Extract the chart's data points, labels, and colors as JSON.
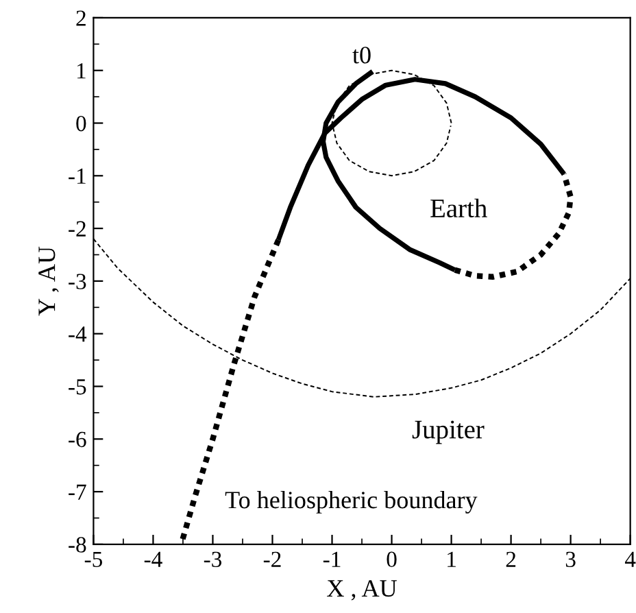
{
  "chart_data": {
    "type": "line",
    "xlabel": "X , AU",
    "ylabel": "Y , AU",
    "xlim": [
      -5,
      4
    ],
    "ylim": [
      -8,
      2
    ],
    "xticks": [
      -5,
      -4,
      -3,
      -2,
      -1,
      0,
      1,
      2,
      3,
      4
    ],
    "yticks": [
      -8,
      -7,
      -6,
      -5,
      -4,
      -3,
      -2,
      -1,
      0,
      1,
      2
    ],
    "grid": false,
    "legend": false,
    "marker": "none",
    "series": [
      {
        "color": "#000000",
        "line_style": "solid",
        "x": [
          -0.32,
          -0.6,
          -0.9,
          -1.1,
          -1.15,
          -1.1,
          -0.9,
          -0.6,
          -0.2,
          0.3,
          0.8,
          1.06
        ],
        "values": [
          0.98,
          0.75,
          0.4,
          0.0,
          -0.35,
          -0.65,
          -1.1,
          -1.6,
          -2.0,
          -2.4,
          -2.65,
          -2.79
        ]
      },
      {
        "color": "#000000",
        "line_style": "dotted",
        "x": [
          1.06,
          1.4,
          1.7,
          2.1,
          2.5,
          2.8,
          2.97,
          3.0,
          2.89
        ],
        "values": [
          -2.79,
          -2.9,
          -2.92,
          -2.82,
          -2.5,
          -2.1,
          -1.7,
          -1.4,
          -0.97
        ]
      },
      {
        "color": "#000000",
        "line_style": "solid",
        "x": [
          2.89,
          2.5,
          2.0,
          1.4,
          0.9,
          0.39,
          -0.1,
          -0.5,
          -0.85,
          -1.12,
          -1.4,
          -1.7,
          -1.9
        ],
        "values": [
          -0.97,
          -0.4,
          0.1,
          0.5,
          0.75,
          0.83,
          0.72,
          0.45,
          0.1,
          -0.19,
          -0.8,
          -1.6,
          -2.22
        ]
      },
      {
        "color": "#000000",
        "line_style": "dotted",
        "x": [
          -1.9,
          -2.3,
          -2.65,
          -3.0,
          -3.3,
          -3.53
        ],
        "values": [
          -2.22,
          -3.3,
          -4.6,
          -6.0,
          -7.1,
          -8.0
        ]
      },
      {
        "name": "Earth",
        "color": "#000000",
        "line_style": "dashed",
        "x": [
          1.0,
          0.92,
          0.71,
          0.38,
          0.0,
          -0.38,
          -0.71,
          -0.92,
          -1.0,
          -0.92,
          -0.71,
          -0.38,
          0.0,
          0.38,
          0.71,
          0.92,
          0.99
        ],
        "values": [
          0.0,
          0.38,
          0.71,
          0.92,
          1.0,
          0.92,
          0.71,
          0.38,
          0.0,
          -0.38,
          -0.71,
          -0.92,
          -1.0,
          -0.92,
          -0.71,
          -0.38,
          -0.05
        ]
      },
      {
        "name": "Jupiter",
        "color": "#000000",
        "line_style": "dashed",
        "x": [
          -5.0,
          -4.6,
          -4.0,
          -3.5,
          -3.0,
          -2.5,
          -2.0,
          -1.5,
          -1.0,
          -0.3,
          0.4,
          1.0,
          1.5,
          2.0,
          2.5,
          3.0,
          3.5,
          4.0
        ],
        "values": [
          -2.2,
          -2.75,
          -3.4,
          -3.85,
          -4.2,
          -4.5,
          -4.75,
          -4.95,
          -5.1,
          -5.2,
          -5.15,
          -5.03,
          -4.88,
          -4.65,
          -4.37,
          -4.0,
          -3.55,
          -2.95
        ]
      }
    ],
    "annotations": [
      "t0",
      "To heliospheric boundary"
    ]
  }
}
